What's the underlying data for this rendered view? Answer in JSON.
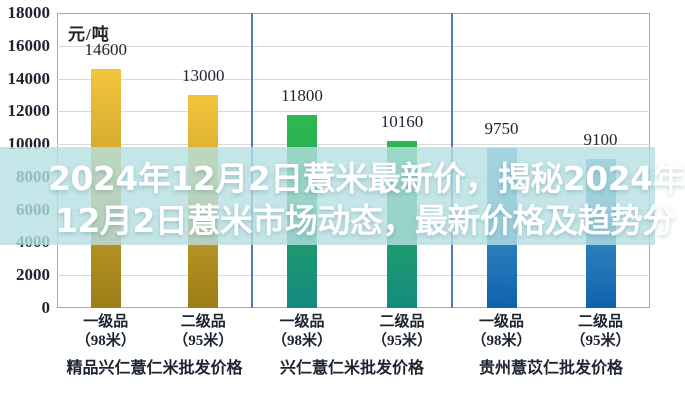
{
  "overlay": {
    "line1": "2024年12月2日薏米最新价，揭秘2024年",
    "line2": "12月2日薏米市场动态，最新价格及趋势分",
    "text_color": "#ffffff",
    "band_color": "rgba(183,224,226,0.8)"
  },
  "chart_data": {
    "type": "bar",
    "unit_label": "元/吨",
    "ylim": [
      0,
      18000
    ],
    "ytick_step": 2000,
    "ytick_labels": [
      "18000",
      "16000",
      "14000",
      "12000",
      "10000",
      "8000",
      "6000",
      "4000",
      "2000",
      "0"
    ],
    "grid": true,
    "value_labels_shown": true,
    "groups": [
      {
        "label": "精品兴仁薏仁米批发价格",
        "bar_color_top": "#f3c53c",
        "bar_color_bottom": "#9c7d18",
        "bars": [
          {
            "category": "一级品",
            "spec": "（98米）",
            "value": 14600,
            "value_label": "14600"
          },
          {
            "category": "二级品",
            "spec": "（95米）",
            "value": 13000,
            "value_label": "13000"
          }
        ]
      },
      {
        "label": "兴仁薏仁米批发价格",
        "bar_color_top": "#2fb84d",
        "bar_color_bottom": "#148a80",
        "bars": [
          {
            "category": "一级品",
            "spec": "（98米）",
            "value": 11800,
            "value_label": "11800"
          },
          {
            "category": "二级品",
            "spec": "（95米）",
            "value": 10160,
            "value_label": "10160"
          }
        ]
      },
      {
        "label": "贵州薏苡仁批发价格",
        "bar_color_top": "#55a5d2",
        "bar_color_bottom": "#0f63ad",
        "bars": [
          {
            "category": "一级品",
            "spec": "（98米）",
            "value": 9750,
            "value_label": "9750"
          },
          {
            "category": "二级品",
            "spec": "（95米）",
            "value": 9100,
            "value_label": "9100"
          }
        ]
      }
    ]
  },
  "style": {
    "background": "#ffffff",
    "plot_border": "#a9a9a9",
    "gridline": "#d9d9d9",
    "group_divider": "#4a7eb5",
    "label_color": "#1c2430"
  }
}
